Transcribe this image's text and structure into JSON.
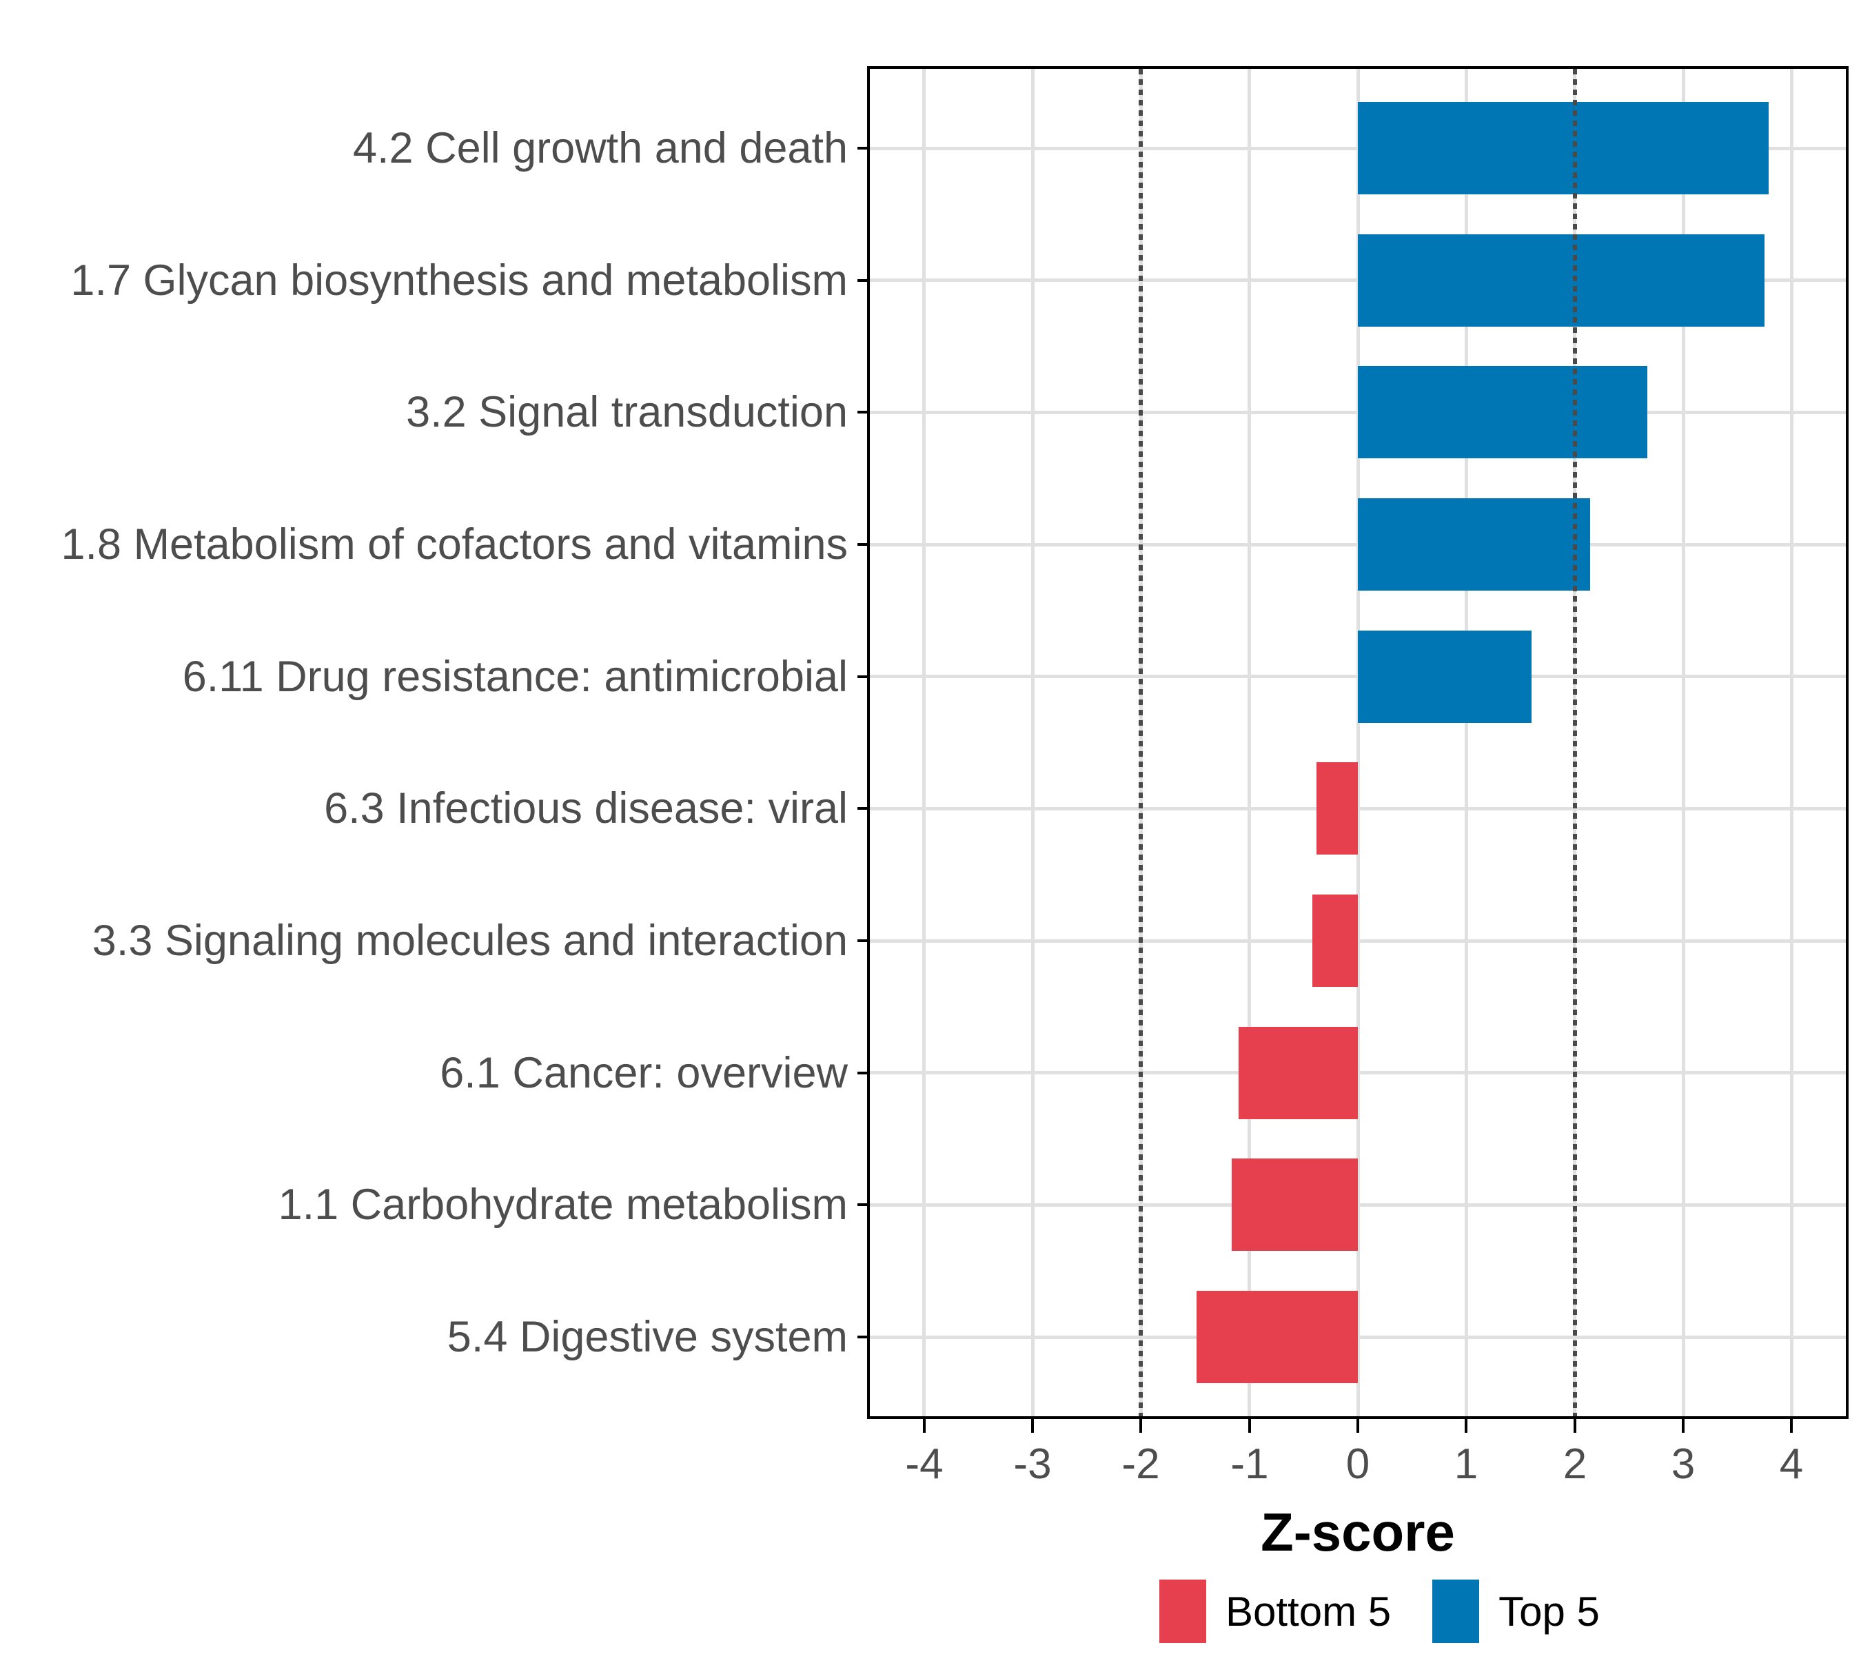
{
  "chart_data": {
    "type": "bar",
    "orientation": "horizontal",
    "title": "",
    "xlabel": "Z-score",
    "ylabel": "",
    "xlim": [
      -4.5,
      4.5
    ],
    "x_ticks": [
      -4,
      -3,
      -2,
      -1,
      0,
      1,
      2,
      3,
      4
    ],
    "reference_lines_x": [
      -2,
      2
    ],
    "grid": "on",
    "legend_position": "bottom",
    "categories": [
      "4.2 Cell growth and death",
      "1.7 Glycan biosynthesis and metabolism",
      "3.2 Signal transduction",
      "1.8 Metabolism of cofactors and vitamins",
      "6.11 Drug resistance: antimicrobial",
      "6.3 Infectious disease: viral",
      "3.3 Signaling molecules and interaction",
      "6.1 Cancer: overview",
      "1.1 Carbohydrate metabolism",
      "5.4 Digestive system"
    ],
    "values": [
      3.79,
      3.75,
      2.67,
      2.14,
      1.6,
      -0.38,
      -0.42,
      -1.1,
      -1.16,
      -1.49
    ],
    "groups": [
      "Top 5",
      "Top 5",
      "Top 5",
      "Top 5",
      "Top 5",
      "Bottom 5",
      "Bottom 5",
      "Bottom 5",
      "Bottom 5",
      "Bottom 5"
    ],
    "legend": [
      {
        "label": "Bottom 5",
        "color": "#E6404F"
      },
      {
        "label": "Top 5",
        "color": "#0077B4"
      }
    ],
    "group_colors": {
      "Top 5": "#0077B4",
      "Bottom 5": "#E6404F"
    }
  }
}
